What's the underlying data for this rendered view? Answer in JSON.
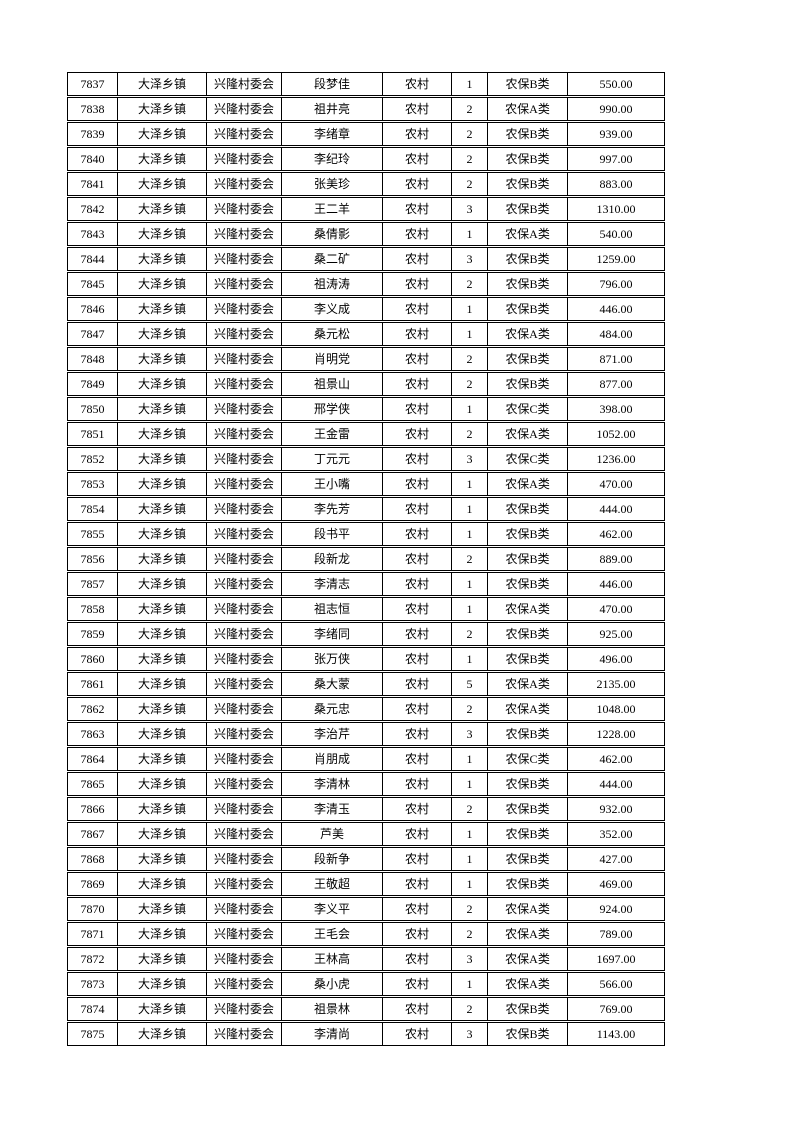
{
  "page": {
    "background": "#ffffff",
    "border_color": "#000000",
    "text_color": "#000000"
  },
  "table": {
    "columns": [
      "serial",
      "town",
      "village",
      "person",
      "residence",
      "count",
      "category",
      "amount"
    ],
    "rows": [
      [
        "7837",
        "大泽乡镇",
        "兴隆村委会",
        "段梦佳",
        "农村",
        "1",
        "农保B类",
        "550.00"
      ],
      [
        "7838",
        "大泽乡镇",
        "兴隆村委会",
        "祖井亮",
        "农村",
        "2",
        "农保A类",
        "990.00"
      ],
      [
        "7839",
        "大泽乡镇",
        "兴隆村委会",
        "李绪章",
        "农村",
        "2",
        "农保B类",
        "939.00"
      ],
      [
        "7840",
        "大泽乡镇",
        "兴隆村委会",
        "李纪玲",
        "农村",
        "2",
        "农保B类",
        "997.00"
      ],
      [
        "7841",
        "大泽乡镇",
        "兴隆村委会",
        "张美珍",
        "农村",
        "2",
        "农保B类",
        "883.00"
      ],
      [
        "7842",
        "大泽乡镇",
        "兴隆村委会",
        "王二羊",
        "农村",
        "3",
        "农保B类",
        "1310.00"
      ],
      [
        "7843",
        "大泽乡镇",
        "兴隆村委会",
        "桑倩影",
        "农村",
        "1",
        "农保A类",
        "540.00"
      ],
      [
        "7844",
        "大泽乡镇",
        "兴隆村委会",
        "桑二矿",
        "农村",
        "3",
        "农保B类",
        "1259.00"
      ],
      [
        "7845",
        "大泽乡镇",
        "兴隆村委会",
        "祖涛涛",
        "农村",
        "2",
        "农保B类",
        "796.00"
      ],
      [
        "7846",
        "大泽乡镇",
        "兴隆村委会",
        "李义成",
        "农村",
        "1",
        "农保B类",
        "446.00"
      ],
      [
        "7847",
        "大泽乡镇",
        "兴隆村委会",
        "桑元松",
        "农村",
        "1",
        "农保A类",
        "484.00"
      ],
      [
        "7848",
        "大泽乡镇",
        "兴隆村委会",
        "肖明党",
        "农村",
        "2",
        "农保B类",
        "871.00"
      ],
      [
        "7849",
        "大泽乡镇",
        "兴隆村委会",
        "祖景山",
        "农村",
        "2",
        "农保B类",
        "877.00"
      ],
      [
        "7850",
        "大泽乡镇",
        "兴隆村委会",
        "邢学侠",
        "农村",
        "1",
        "农保C类",
        "398.00"
      ],
      [
        "7851",
        "大泽乡镇",
        "兴隆村委会",
        "王金雷",
        "农村",
        "2",
        "农保A类",
        "1052.00"
      ],
      [
        "7852",
        "大泽乡镇",
        "兴隆村委会",
        "丁元元",
        "农村",
        "3",
        "农保C类",
        "1236.00"
      ],
      [
        "7853",
        "大泽乡镇",
        "兴隆村委会",
        "王小嘴",
        "农村",
        "1",
        "农保A类",
        "470.00"
      ],
      [
        "7854",
        "大泽乡镇",
        "兴隆村委会",
        "李先芳",
        "农村",
        "1",
        "农保B类",
        "444.00"
      ],
      [
        "7855",
        "大泽乡镇",
        "兴隆村委会",
        "段书平",
        "农村",
        "1",
        "农保B类",
        "462.00"
      ],
      [
        "7856",
        "大泽乡镇",
        "兴隆村委会",
        "段新龙",
        "农村",
        "2",
        "农保B类",
        "889.00"
      ],
      [
        "7857",
        "大泽乡镇",
        "兴隆村委会",
        "李清志",
        "农村",
        "1",
        "农保B类",
        "446.00"
      ],
      [
        "7858",
        "大泽乡镇",
        "兴隆村委会",
        "祖志恒",
        "农村",
        "1",
        "农保A类",
        "470.00"
      ],
      [
        "7859",
        "大泽乡镇",
        "兴隆村委会",
        "李绪同",
        "农村",
        "2",
        "农保B类",
        "925.00"
      ],
      [
        "7860",
        "大泽乡镇",
        "兴隆村委会",
        "张万侠",
        "农村",
        "1",
        "农保B类",
        "496.00"
      ],
      [
        "7861",
        "大泽乡镇",
        "兴隆村委会",
        "桑大蒙",
        "农村",
        "5",
        "农保A类",
        "2135.00"
      ],
      [
        "7862",
        "大泽乡镇",
        "兴隆村委会",
        "桑元忠",
        "农村",
        "2",
        "农保A类",
        "1048.00"
      ],
      [
        "7863",
        "大泽乡镇",
        "兴隆村委会",
        "李治芹",
        "农村",
        "3",
        "农保B类",
        "1228.00"
      ],
      [
        "7864",
        "大泽乡镇",
        "兴隆村委会",
        "肖朋成",
        "农村",
        "1",
        "农保C类",
        "462.00"
      ],
      [
        "7865",
        "大泽乡镇",
        "兴隆村委会",
        "李清林",
        "农村",
        "1",
        "农保B类",
        "444.00"
      ],
      [
        "7866",
        "大泽乡镇",
        "兴隆村委会",
        "李清玉",
        "农村",
        "2",
        "农保B类",
        "932.00"
      ],
      [
        "7867",
        "大泽乡镇",
        "兴隆村委会",
        "芦美",
        "农村",
        "1",
        "农保B类",
        "352.00"
      ],
      [
        "7868",
        "大泽乡镇",
        "兴隆村委会",
        "段新争",
        "农村",
        "1",
        "农保B类",
        "427.00"
      ],
      [
        "7869",
        "大泽乡镇",
        "兴隆村委会",
        "王敬超",
        "农村",
        "1",
        "农保B类",
        "469.00"
      ],
      [
        "7870",
        "大泽乡镇",
        "兴隆村委会",
        "李义平",
        "农村",
        "2",
        "农保A类",
        "924.00"
      ],
      [
        "7871",
        "大泽乡镇",
        "兴隆村委会",
        "王毛会",
        "农村",
        "2",
        "农保A类",
        "789.00"
      ],
      [
        "7872",
        "大泽乡镇",
        "兴隆村委会",
        "王林高",
        "农村",
        "3",
        "农保A类",
        "1697.00"
      ],
      [
        "7873",
        "大泽乡镇",
        "兴隆村委会",
        "桑小虎",
        "农村",
        "1",
        "农保A类",
        "566.00"
      ],
      [
        "7874",
        "大泽乡镇",
        "兴隆村委会",
        "祖景林",
        "农村",
        "2",
        "农保B类",
        "769.00"
      ],
      [
        "7875",
        "大泽乡镇",
        "兴隆村委会",
        "李清尚",
        "农村",
        "3",
        "农保B类",
        "1143.00"
      ]
    ]
  }
}
